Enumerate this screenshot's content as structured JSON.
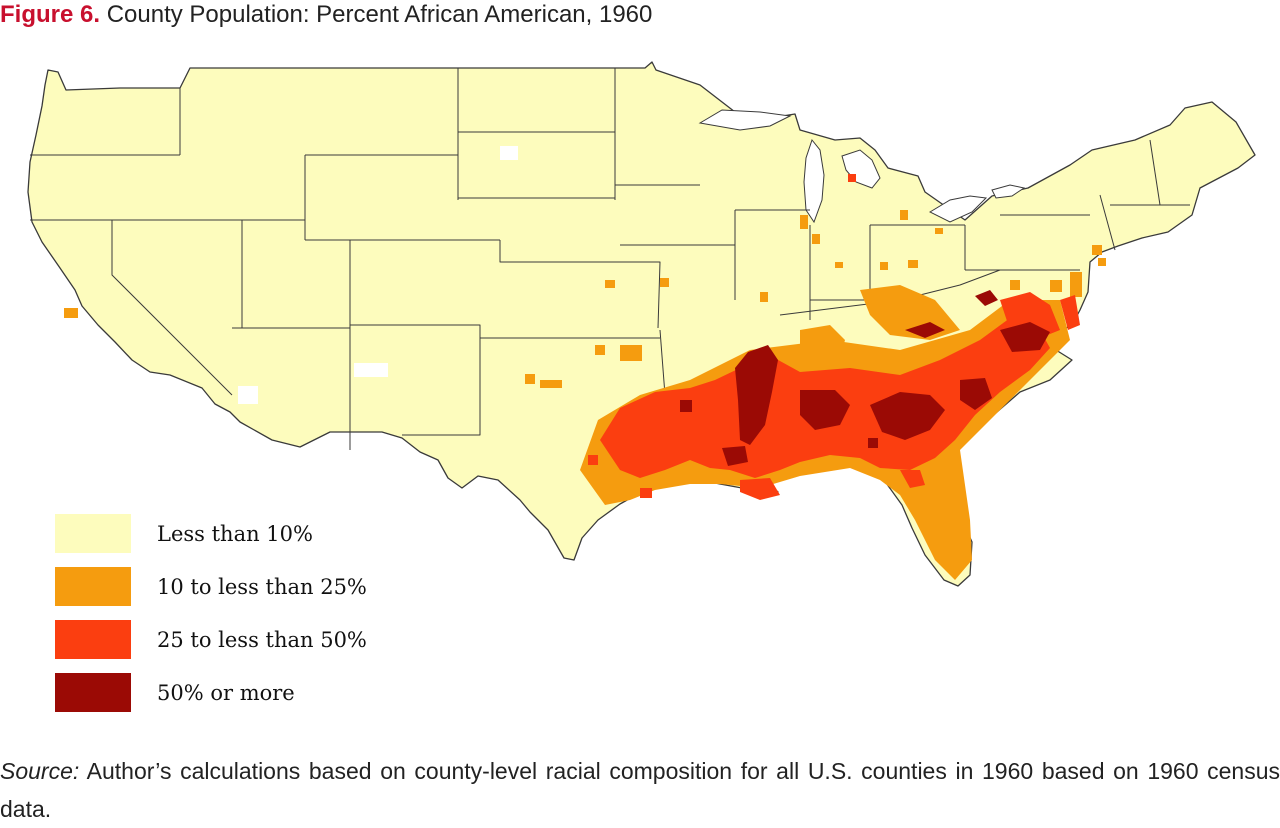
{
  "figure": {
    "label": "Figure 6.",
    "title": "County Population: Percent African American, 1960"
  },
  "legend": [
    {
      "label": "Less than 10%",
      "color": "#fdfcbd"
    },
    {
      "label": "10 to less than 25%",
      "color": "#f59c0f"
    },
    {
      "label": "25 to less than 50%",
      "color": "#fb3e10"
    },
    {
      "label": "50% or more",
      "color": "#9b0a05"
    }
  ],
  "colors": {
    "land": "#fdfcbd",
    "border": "#3a3a3a",
    "nodata": "#ffffff"
  },
  "source": {
    "label": "Source:",
    "text": "Author’s calculations based on county-level racial composition for all U.S. counties in 1960 based on 1960 census data."
  }
}
